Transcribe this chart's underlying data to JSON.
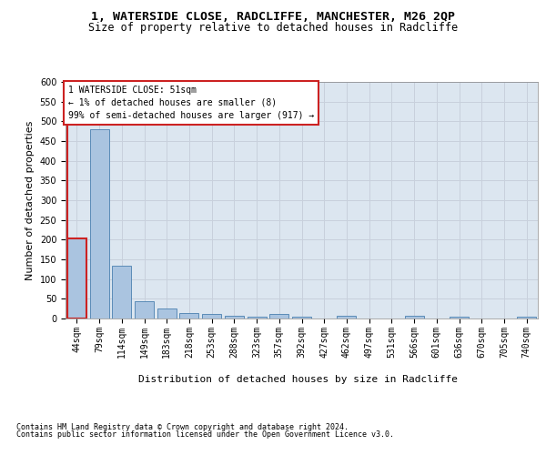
{
  "title1": "1, WATERSIDE CLOSE, RADCLIFFE, MANCHESTER, M26 2QP",
  "title2": "Size of property relative to detached houses in Radcliffe",
  "xlabel": "Distribution of detached houses by size in Radcliffe",
  "ylabel": "Number of detached properties",
  "footnote1": "Contains HM Land Registry data © Crown copyright and database right 2024.",
  "footnote2": "Contains public sector information licensed under the Open Government Licence v3.0.",
  "annotation_line1": "1 WATERSIDE CLOSE: 51sqm",
  "annotation_line2": "← 1% of detached houses are smaller (8)",
  "annotation_line3": "99% of semi-detached houses are larger (917) →",
  "bar_labels": [
    "44sqm",
    "79sqm",
    "114sqm",
    "149sqm",
    "183sqm",
    "218sqm",
    "253sqm",
    "288sqm",
    "323sqm",
    "357sqm",
    "392sqm",
    "427sqm",
    "462sqm",
    "497sqm",
    "531sqm",
    "566sqm",
    "601sqm",
    "636sqm",
    "670sqm",
    "705sqm",
    "740sqm"
  ],
  "bar_values": [
    202,
    480,
    135,
    43,
    25,
    15,
    12,
    6,
    5,
    11,
    5,
    0,
    6,
    0,
    0,
    8,
    0,
    5,
    0,
    0,
    5
  ],
  "bar_color": "#aac4e0",
  "bar_edge_color": "#4a80b0",
  "highlight_bar_index": 0,
  "highlight_color": "#cc2222",
  "annotation_box_color": "#cc2222",
  "annotation_box_fill": "white",
  "ylim": [
    0,
    600
  ],
  "yticks": [
    0,
    50,
    100,
    150,
    200,
    250,
    300,
    350,
    400,
    450,
    500,
    550,
    600
  ],
  "grid_color": "#c8d0dc",
  "background_color": "#dce6f0",
  "title1_fontsize": 9.5,
  "title2_fontsize": 8.5,
  "axis_label_fontsize": 8,
  "tick_fontsize": 7,
  "annotation_fontsize": 7,
  "footnote_fontsize": 6
}
